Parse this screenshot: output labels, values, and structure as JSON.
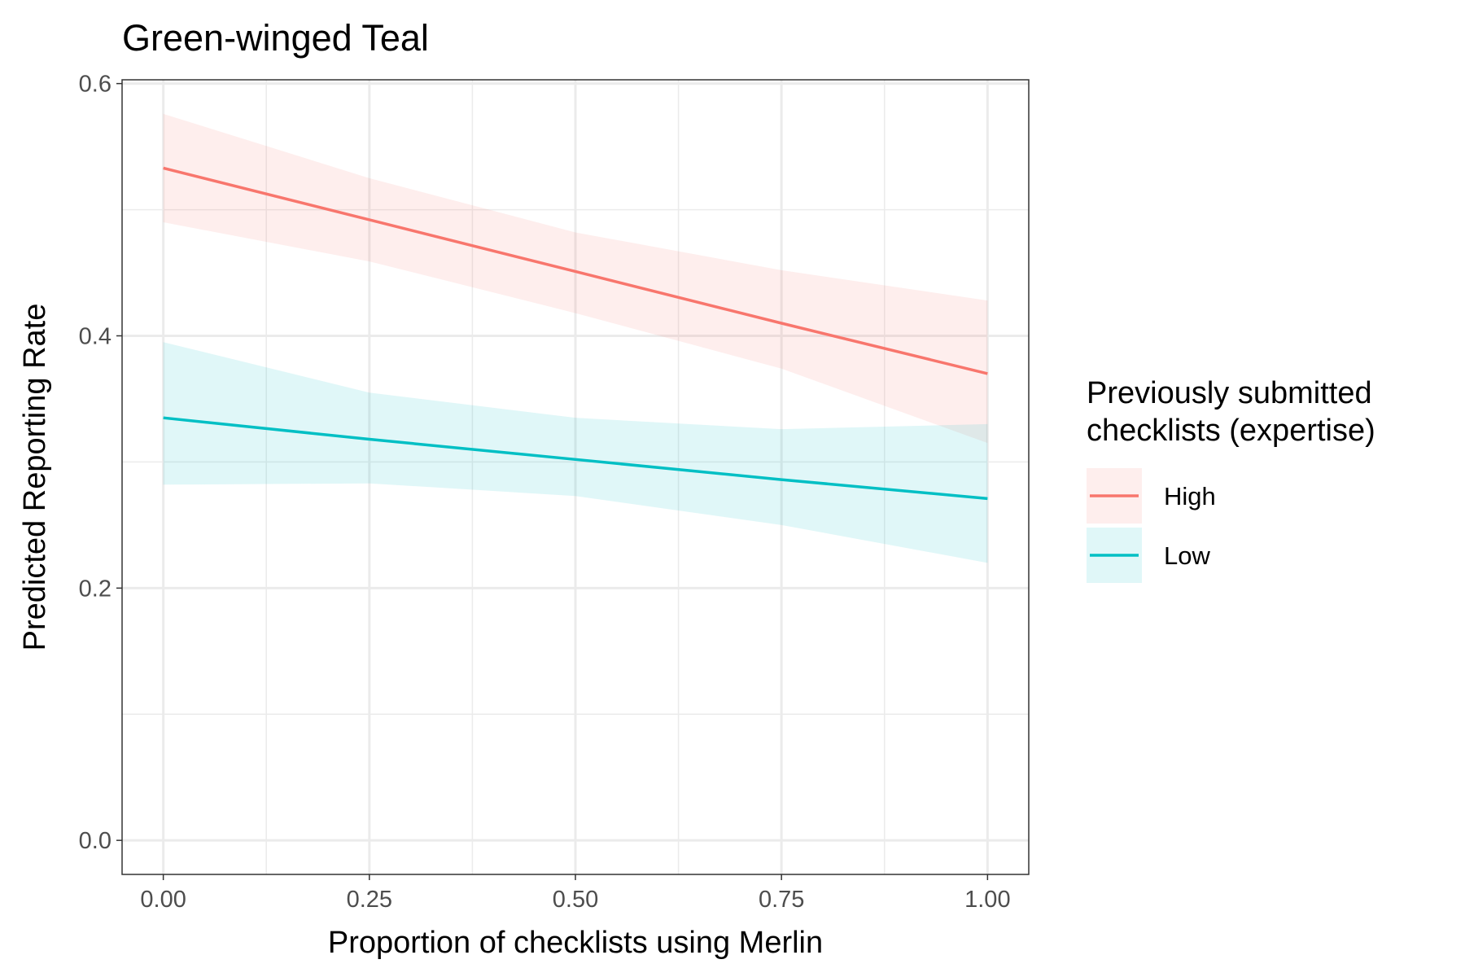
{
  "chart_data": {
    "type": "line",
    "title": "Green-winged Teal",
    "xlabel": "Proportion of checklists using Merlin",
    "ylabel": "Predicted Reporting Rate",
    "x_ticks": [
      "0.00",
      "0.25",
      "0.50",
      "0.75",
      "1.00"
    ],
    "y_ticks": [
      "0.0",
      "0.2",
      "0.4",
      "0.6"
    ],
    "xlim": [
      -0.05,
      1.05
    ],
    "ylim": [
      -0.027,
      0.603
    ],
    "grid": true,
    "legend": {
      "title_lines": [
        "Previously submitted",
        "checklists (expertise)"
      ],
      "placement": "right"
    },
    "series": [
      {
        "name": "High",
        "color": "#F8766D",
        "x": [
          0,
          0.25,
          0.5,
          0.75,
          1
        ],
        "y": [
          0.533,
          0.492,
          0.451,
          0.41,
          0.37
        ],
        "ci_lower": [
          0.49,
          0.459,
          0.418,
          0.374,
          0.315
        ],
        "ci_upper": [
          0.576,
          0.525,
          0.482,
          0.452,
          0.428
        ]
      },
      {
        "name": "Low",
        "color": "#00BFC4",
        "x": [
          0,
          0.25,
          0.5,
          0.75,
          1
        ],
        "y": [
          0.335,
          0.318,
          0.302,
          0.286,
          0.271
        ],
        "ci_lower": [
          0.282,
          0.283,
          0.273,
          0.25,
          0.22
        ],
        "ci_upper": [
          0.395,
          0.355,
          0.335,
          0.326,
          0.33
        ]
      }
    ]
  }
}
